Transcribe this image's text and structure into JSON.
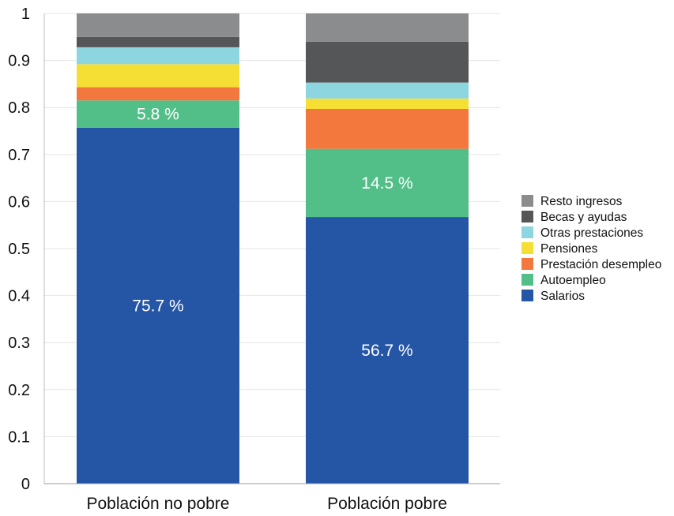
{
  "chart_data": {
    "type": "bar",
    "stacked": true,
    "categories": [
      "Población no pobre",
      "Población pobre"
    ],
    "series": [
      {
        "name": "Salarios",
        "color": "#2555a5",
        "values": [
          0.757,
          0.567
        ]
      },
      {
        "name": "Autoempleo",
        "color": "#52bf88",
        "values": [
          0.058,
          0.145
        ]
      },
      {
        "name": "Prestación desempleo",
        "color": "#f2783e",
        "values": [
          0.028,
          0.085
        ]
      },
      {
        "name": "Pensiones",
        "color": "#f6df34",
        "values": [
          0.049,
          0.022
        ]
      },
      {
        "name": "Otras prestaciones",
        "color": "#8ed6df",
        "values": [
          0.036,
          0.034
        ]
      },
      {
        "name": "Becas y ayudas",
        "color": "#545657",
        "values": [
          0.022,
          0.087
        ]
      },
      {
        "name": "Resto ingresos",
        "color": "#8a8c8e",
        "values": [
          0.05,
          0.06
        ]
      }
    ],
    "data_labels": [
      {
        "category": "Población no pobre",
        "series": "Salarios",
        "text": "75.7 %"
      },
      {
        "category": "Población no pobre",
        "series": "Autoempleo",
        "text": "5.8 %"
      },
      {
        "category": "Población pobre",
        "series": "Salarios",
        "text": "56.7 %"
      },
      {
        "category": "Población pobre",
        "series": "Autoempleo",
        "text": "14.5 %"
      }
    ],
    "yticks": [
      "0",
      "0.1",
      "0.2",
      "0.3",
      "0.4",
      "0.5",
      "0.6",
      "0.7",
      "0.8",
      "0.9",
      "1"
    ],
    "ylim": [
      0,
      1
    ],
    "grid": true,
    "legend": {
      "position": "right",
      "order": [
        "Resto ingresos",
        "Becas y ayudas",
        "Otras prestaciones",
        "Pensiones",
        "Prestación desempleo",
        "Autoempleo",
        "Salarios"
      ]
    },
    "title": "",
    "xlabel": "",
    "ylabel": ""
  }
}
